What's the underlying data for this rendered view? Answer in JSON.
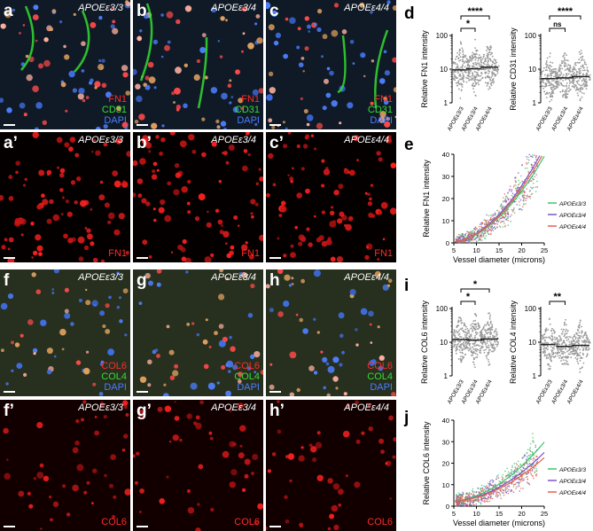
{
  "micrographs": [
    {
      "id": "a",
      "label": "a",
      "title": "APOEε3/3",
      "channels": [
        "FN1",
        "CD31",
        "DAPI"
      ],
      "kind": "merge1"
    },
    {
      "id": "b",
      "label": "b",
      "title": "APOEε3/4",
      "channels": [
        "FN1",
        "CD31",
        "DAPI"
      ],
      "kind": "merge1"
    },
    {
      "id": "c",
      "label": "c",
      "title": "APOEε4/4",
      "channels": [
        "FN1",
        "CD31",
        "DAPI"
      ],
      "kind": "merge1"
    },
    {
      "id": "a2",
      "label": "a’",
      "title": "APOEε3/3",
      "channels": [
        "FN1"
      ],
      "kind": "red"
    },
    {
      "id": "b2",
      "label": "b’",
      "title": "APOEε3/4",
      "channels": [
        "FN1"
      ],
      "kind": "red"
    },
    {
      "id": "c2",
      "label": "c’",
      "title": "APOEε4/4",
      "channels": [
        "FN1"
      ],
      "kind": "red"
    },
    {
      "id": "f",
      "label": "f",
      "title": "APOEε3/3",
      "channels": [
        "COL6",
        "COL4",
        "DAPI"
      ],
      "kind": "merge2"
    },
    {
      "id": "g",
      "label": "g",
      "title": "APOEε3/4",
      "channels": [
        "COL6",
        "COL4",
        "DAPI"
      ],
      "kind": "merge2"
    },
    {
      "id": "h",
      "label": "h",
      "title": "APOEε4/4",
      "channels": [
        "COL6",
        "COL4",
        "DAPI"
      ],
      "kind": "merge2"
    },
    {
      "id": "f2",
      "label": "f’",
      "title": "APOEε3/3",
      "channels": [
        "COL6"
      ],
      "kind": "red2"
    },
    {
      "id": "g2",
      "label": "g’",
      "title": "APOEε3/4",
      "channels": [
        "COL6"
      ],
      "kind": "red2"
    },
    {
      "id": "h2",
      "label": "h’",
      "title": "APOEε4/4",
      "channels": [
        "COL6"
      ],
      "kind": "red2"
    }
  ],
  "colors": {
    "red": "#ff2a2a",
    "green": "#33dd33",
    "blue": "#4a7dff",
    "dots": "#9a9a9a",
    "median": "#222222",
    "line33": "#3ec46d",
    "line34": "#7a55c8",
    "line44": "#e2634f"
  },
  "panel_letters": {
    "d": "d",
    "e": "e",
    "i": "i",
    "j": "j"
  },
  "chart_data": [
    {
      "id": "d1",
      "type": "scatter",
      "subtype": "dot-plot",
      "ylabel": "Relative FN1 intensity",
      "yscale": "log",
      "ylim": [
        1,
        100
      ],
      "yticks": [
        "1",
        "10",
        "100"
      ],
      "categories": [
        "APOEε3/3",
        "APOEε3/4",
        "APOEε4/4"
      ],
      "medians": [
        9.5,
        10.2,
        11.5
      ],
      "significance": [
        {
          "from": 0,
          "to": 1,
          "label": "*"
        },
        {
          "from": 0,
          "to": 2,
          "label": "****"
        }
      ]
    },
    {
      "id": "d2",
      "type": "scatter",
      "subtype": "dot-plot",
      "ylabel": "Relative CD31 intensity",
      "yscale": "log",
      "ylim": [
        1,
        100
      ],
      "yticks": [
        "1",
        "10",
        "100"
      ],
      "categories": [
        "APOEε3/3",
        "APOEε3/4",
        "APOEε4/4"
      ],
      "medians": [
        5.2,
        5.5,
        6.0
      ],
      "significance": [
        {
          "from": 0,
          "to": 1,
          "label": "ns"
        },
        {
          "from": 0,
          "to": 2,
          "label": "****"
        }
      ]
    },
    {
      "id": "e",
      "type": "scatter",
      "xlabel": "Vessel diameter (microns)",
      "ylabel": "Relative FN1 intensity",
      "xlim": [
        5,
        25
      ],
      "ylim": [
        0,
        40
      ],
      "xticks": [
        5,
        10,
        15,
        20,
        25
      ],
      "yticks": [
        0,
        10,
        20,
        30,
        40
      ],
      "series": [
        {
          "name": "APOEε3/3"
        },
        {
          "name": "APOEε3/4"
        },
        {
          "name": "APOEε4/4"
        }
      ]
    },
    {
      "id": "i1",
      "type": "scatter",
      "subtype": "dot-plot",
      "ylabel": "Relative COL6 intensity",
      "yscale": "log",
      "ylim": [
        1,
        100
      ],
      "yticks": [
        "1",
        "10",
        "100"
      ],
      "categories": [
        "APOEε3/3",
        "APOEε3/4",
        "APOEε4/4"
      ],
      "medians": [
        12.0,
        11.5,
        12.5
      ],
      "significance": [
        {
          "from": 0,
          "to": 1,
          "label": "*"
        },
        {
          "from": 0,
          "to": 2,
          "label": "*"
        }
      ]
    },
    {
      "id": "i2",
      "type": "scatter",
      "subtype": "dot-plot",
      "ylabel": "Relative COL4 intensity",
      "yscale": "log",
      "ylim": [
        1,
        100
      ],
      "yticks": [
        "1",
        "10",
        "100"
      ],
      "categories": [
        "APOEε3/3",
        "APOEε3/4",
        "APOEε4/4"
      ],
      "medians": [
        8.5,
        7.5,
        8.0
      ],
      "significance": [
        {
          "from": 0,
          "to": 1,
          "label": "**"
        }
      ]
    },
    {
      "id": "j",
      "type": "scatter",
      "xlabel": "Vessel diameter (microns)",
      "ylabel": "Relative COL6 intensity",
      "xlim": [
        5,
        25
      ],
      "ylim": [
        0,
        40
      ],
      "xticks": [
        5,
        10,
        15,
        20,
        25
      ],
      "yticks": [
        0,
        10,
        20,
        30,
        40
      ],
      "series": [
        {
          "name": "APOEε3/3"
        },
        {
          "name": "APOEε3/4"
        },
        {
          "name": "APOEε4/4"
        }
      ]
    }
  ]
}
